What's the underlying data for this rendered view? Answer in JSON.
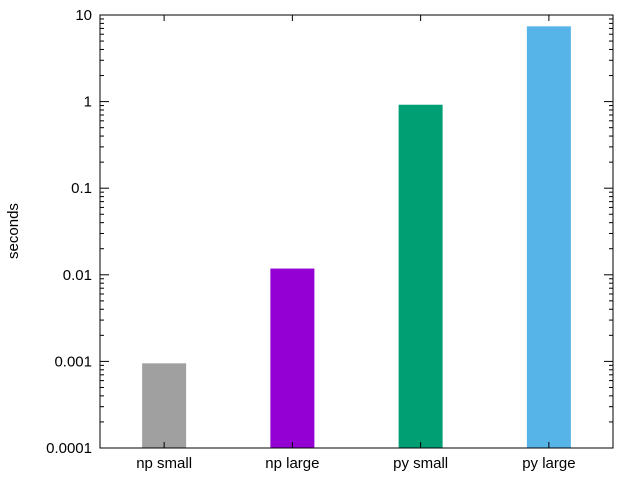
{
  "chart_data": {
    "type": "bar",
    "title": "",
    "xlabel": "",
    "ylabel": "seconds",
    "yscale": "log",
    "ylim": [
      0.0001,
      10
    ],
    "yticks": [
      "0.0001",
      "0.001",
      "0.01",
      "0.1",
      "1",
      "10"
    ],
    "categories": [
      "np small",
      "np large",
      "py small",
      "py large"
    ],
    "values": [
      0.00095,
      0.0118,
      0.92,
      7.4
    ],
    "colors": [
      "#a0a0a0",
      "#9400d3",
      "#009e73",
      "#56b4e9"
    ],
    "grid": false,
    "legend": "none"
  }
}
